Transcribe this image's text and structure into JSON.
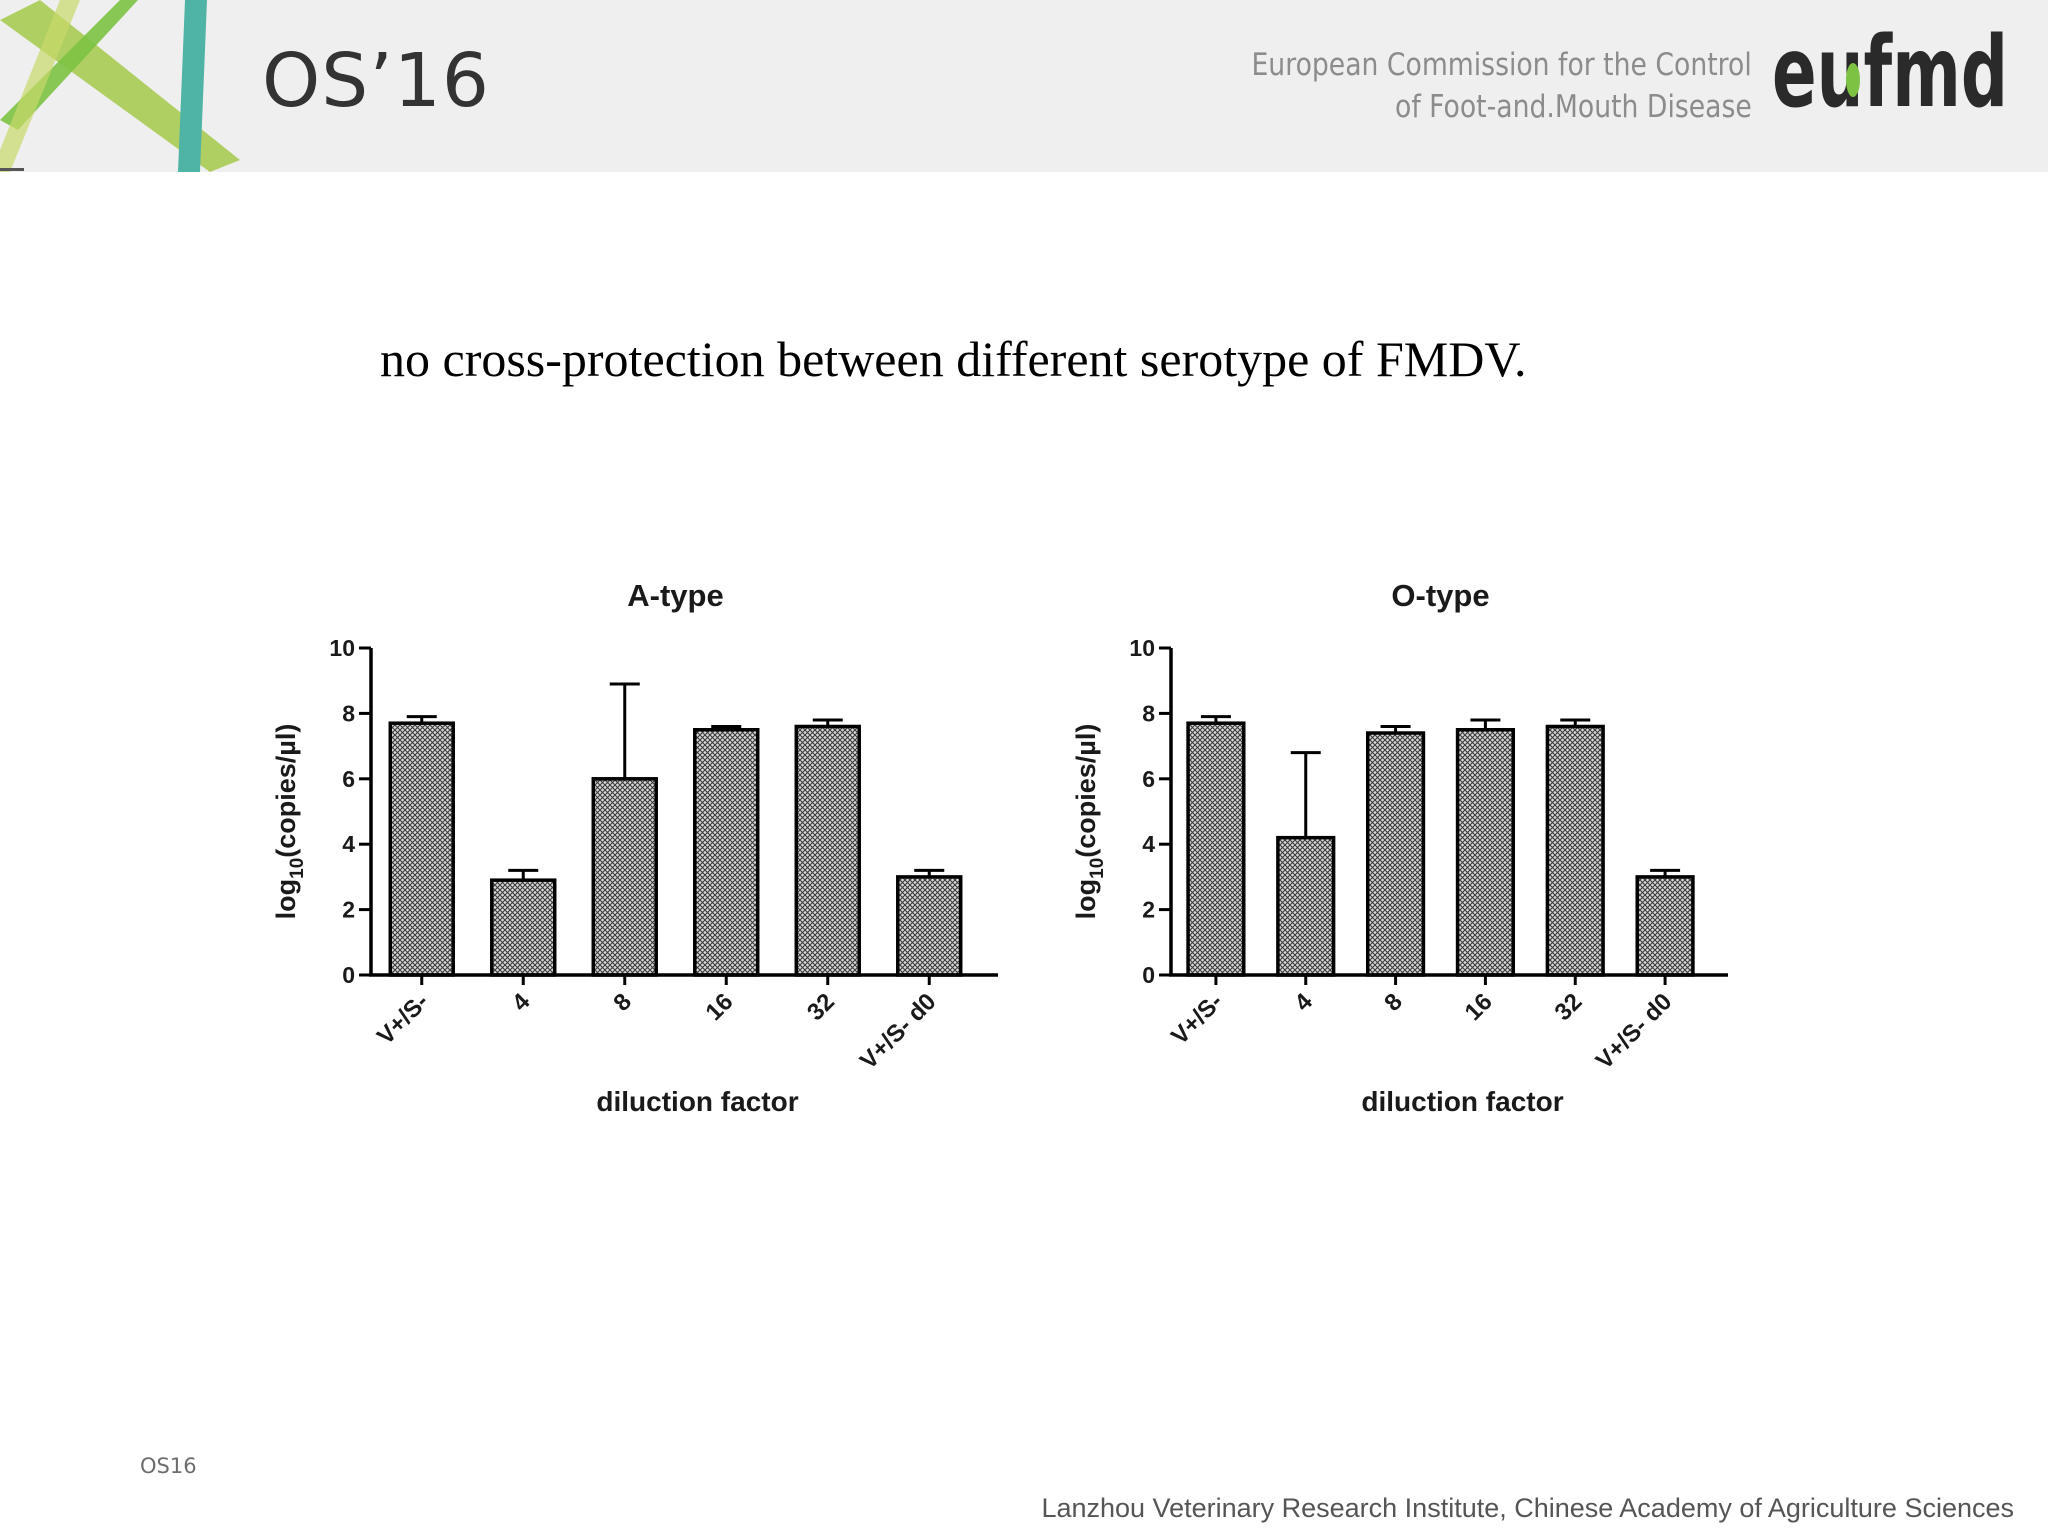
{
  "header": {
    "conference_title": "OS’16",
    "commission_line1": "European Commission for the Control",
    "commission_line2": "of Foot-and.Mouth Disease",
    "brand_logo": "eufmd",
    "logo_colors": {
      "dark": "#2a2a2a",
      "leaf": "#7dc242",
      "teal": "#4fb3a6",
      "lime": "#a4c94a"
    }
  },
  "slide": {
    "heading": "no cross-protection between different serotype of FMDV."
  },
  "chart_data": [
    {
      "type": "bar",
      "title": "A-type",
      "xlabel": "diluction factor",
      "ylabel_main": "log",
      "ylabel_sub": "10",
      "ylabel_rest": "(copies/µl)",
      "categories": [
        "V+/S-",
        "4",
        "8",
        "16",
        "32",
        "V+/S- d0"
      ],
      "values": [
        7.7,
        2.9,
        6.0,
        7.5,
        7.6,
        3.0
      ],
      "error_upper": [
        7.9,
        3.2,
        8.9,
        7.6,
        7.8,
        3.2
      ],
      "ylim": [
        0,
        10
      ],
      "yticks": [
        "0",
        "2",
        "4",
        "6",
        "8",
        "10"
      ]
    },
    {
      "type": "bar",
      "title": "O-type",
      "xlabel": "diluction factor",
      "ylabel_main": "log",
      "ylabel_sub": "10",
      "ylabel_rest": "(copies/µl)",
      "categories": [
        "V+/S-",
        "4",
        "8",
        "16",
        "32",
        "V+/S- d0"
      ],
      "values": [
        7.7,
        4.2,
        7.4,
        7.5,
        7.6,
        3.0
      ],
      "error_upper": [
        7.9,
        6.8,
        7.6,
        7.8,
        7.8,
        3.2
      ],
      "ylim": [
        0,
        10
      ],
      "yticks": [
        "0",
        "2",
        "4",
        "6",
        "8",
        "10"
      ]
    }
  ],
  "footer": {
    "left_label": "OS16",
    "institution": "Lanzhou Veterinary Research Institute, Chinese Academy of Agriculture Sciences"
  }
}
